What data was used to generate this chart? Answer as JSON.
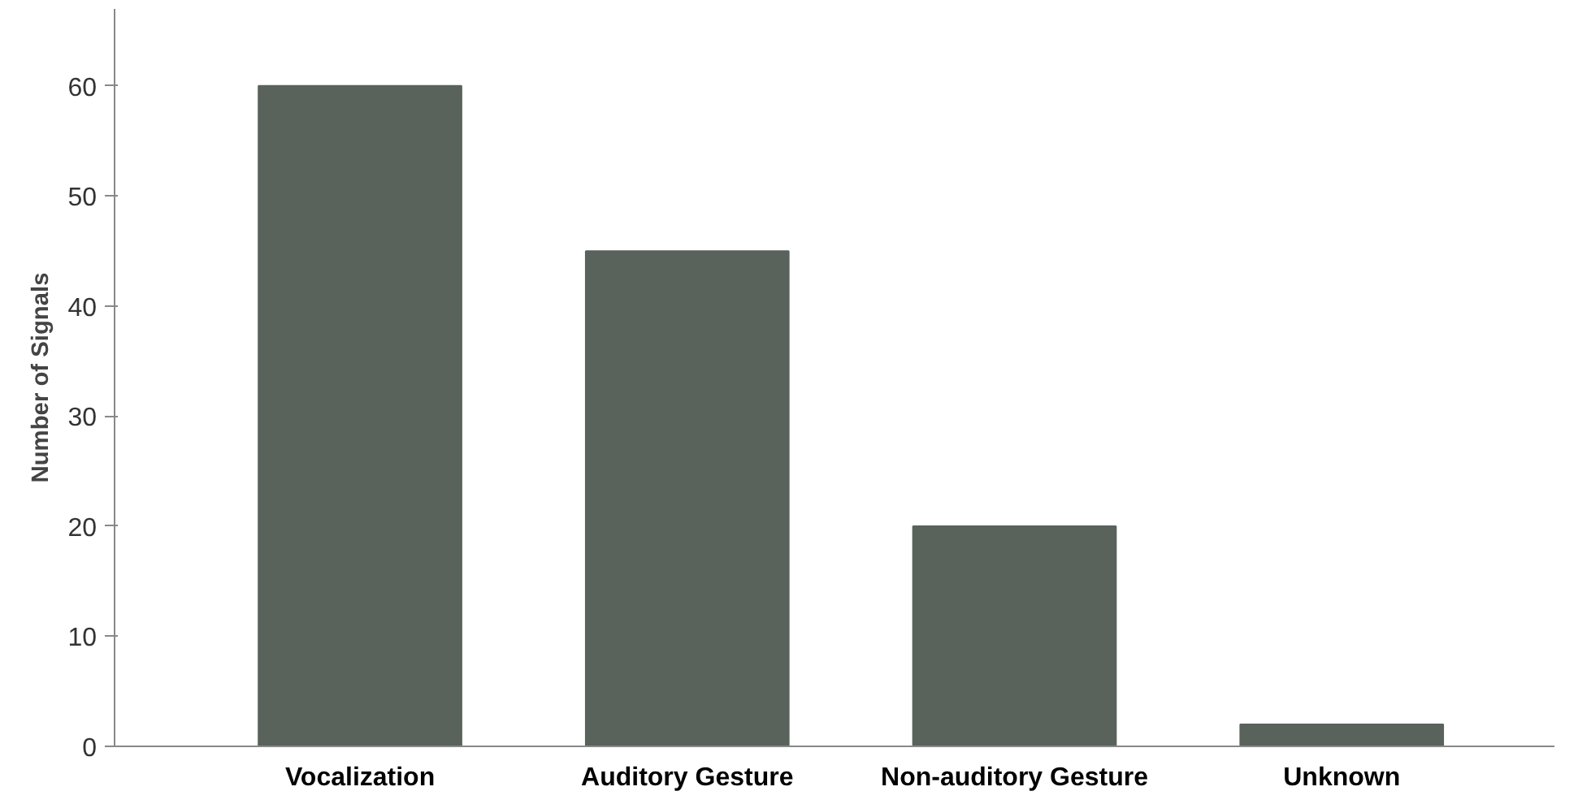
{
  "chart_data": {
    "type": "bar",
    "ylabel": "Number of Signals",
    "categories": [
      "Vocalization",
      "Auditory Gesture",
      "Non-auditory Gesture",
      "Unknown"
    ],
    "values": [
      60,
      45,
      20,
      2
    ],
    "color": "#59625b",
    "ylim": [
      0,
      67
    ],
    "yticks": [
      0,
      10,
      20,
      30,
      40,
      50,
      60
    ],
    "grid": false
  }
}
